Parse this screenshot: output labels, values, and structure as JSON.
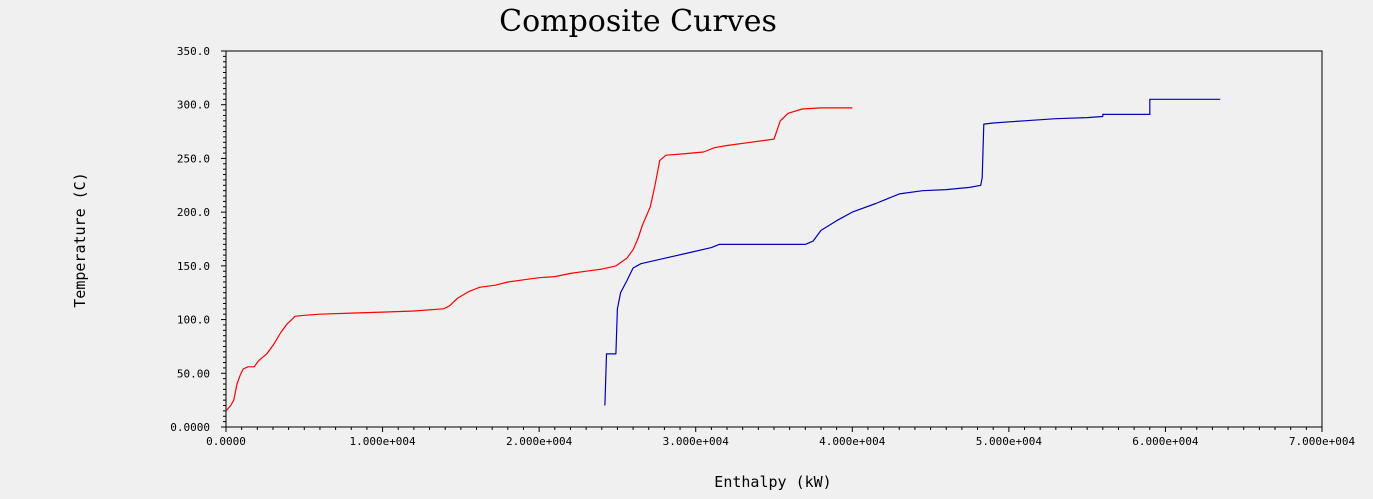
{
  "chart_data": {
    "type": "line",
    "title": "Composite Curves",
    "xlabel": "Enthalpy (kW)",
    "ylabel": "Temperature (C)",
    "xlim": [
      0,
      70000
    ],
    "ylim": [
      0,
      350
    ],
    "x_tick_values": [
      0,
      10000,
      20000,
      30000,
      40000,
      50000,
      60000,
      70000
    ],
    "x_tick_labels": [
      "0.0000",
      "1.000e+004",
      "2.000e+004",
      "3.000e+004",
      "4.000e+004",
      "5.000e+004",
      "6.000e+004",
      "7.000e+004"
    ],
    "y_tick_values": [
      0,
      50,
      100,
      150,
      200,
      250,
      300,
      350
    ],
    "y_tick_labels": [
      "0.0000",
      "50.00",
      "100.0",
      "150.0",
      "200.0",
      "250.0",
      "300.0",
      "350.0"
    ],
    "grid": false,
    "legend": "none",
    "series": [
      {
        "color": "#ff0000",
        "points": [
          [
            0,
            15
          ],
          [
            300,
            20
          ],
          [
            500,
            25
          ],
          [
            700,
            40
          ],
          [
            900,
            48
          ],
          [
            1100,
            54
          ],
          [
            1400,
            56
          ],
          [
            1800,
            56
          ],
          [
            2100,
            62
          ],
          [
            2600,
            68
          ],
          [
            3000,
            76
          ],
          [
            3500,
            88
          ],
          [
            3900,
            96
          ],
          [
            4200,
            100
          ],
          [
            4400,
            103
          ],
          [
            5000,
            104
          ],
          [
            6000,
            105
          ],
          [
            8000,
            106
          ],
          [
            10000,
            107
          ],
          [
            12000,
            108
          ],
          [
            13900,
            110
          ],
          [
            14300,
            113
          ],
          [
            14800,
            120
          ],
          [
            15500,
            126
          ],
          [
            16200,
            130
          ],
          [
            17200,
            132
          ],
          [
            18000,
            135
          ],
          [
            19000,
            137
          ],
          [
            20000,
            139
          ],
          [
            21000,
            140
          ],
          [
            22000,
            143
          ],
          [
            23000,
            145
          ],
          [
            24000,
            147
          ],
          [
            24900,
            150
          ],
          [
            25600,
            157
          ],
          [
            26000,
            165
          ],
          [
            26300,
            175
          ],
          [
            26600,
            188
          ],
          [
            27100,
            205
          ],
          [
            27400,
            225
          ],
          [
            27700,
            248
          ],
          [
            28100,
            253
          ],
          [
            29000,
            254
          ],
          [
            30500,
            256
          ],
          [
            31200,
            260
          ],
          [
            32000,
            262
          ],
          [
            33500,
            265
          ],
          [
            35000,
            268
          ],
          [
            35400,
            285
          ],
          [
            35900,
            292
          ],
          [
            36800,
            296
          ],
          [
            38000,
            297
          ],
          [
            40000,
            297
          ]
        ]
      },
      {
        "color": "#0000bb",
        "points": [
          [
            24200,
            20
          ],
          [
            24300,
            68
          ],
          [
            24900,
            68
          ],
          [
            25000,
            110
          ],
          [
            25200,
            125
          ],
          [
            25600,
            136
          ],
          [
            26000,
            148
          ],
          [
            26500,
            152
          ],
          [
            28000,
            157
          ],
          [
            29500,
            162
          ],
          [
            31000,
            167
          ],
          [
            31500,
            170
          ],
          [
            33000,
            170
          ],
          [
            35000,
            170
          ],
          [
            37000,
            170
          ],
          [
            37500,
            173
          ],
          [
            38000,
            183
          ],
          [
            39000,
            192
          ],
          [
            40000,
            200
          ],
          [
            41500,
            208
          ],
          [
            43000,
            217
          ],
          [
            44500,
            220
          ],
          [
            46000,
            221
          ],
          [
            47500,
            223
          ],
          [
            48200,
            225
          ],
          [
            48300,
            232
          ],
          [
            48400,
            282
          ],
          [
            49000,
            283
          ],
          [
            51000,
            285
          ],
          [
            53000,
            287
          ],
          [
            55000,
            288
          ],
          [
            56000,
            289
          ],
          [
            56000,
            291
          ],
          [
            59000,
            291
          ],
          [
            59000,
            305
          ],
          [
            63500,
            305
          ]
        ]
      }
    ]
  }
}
